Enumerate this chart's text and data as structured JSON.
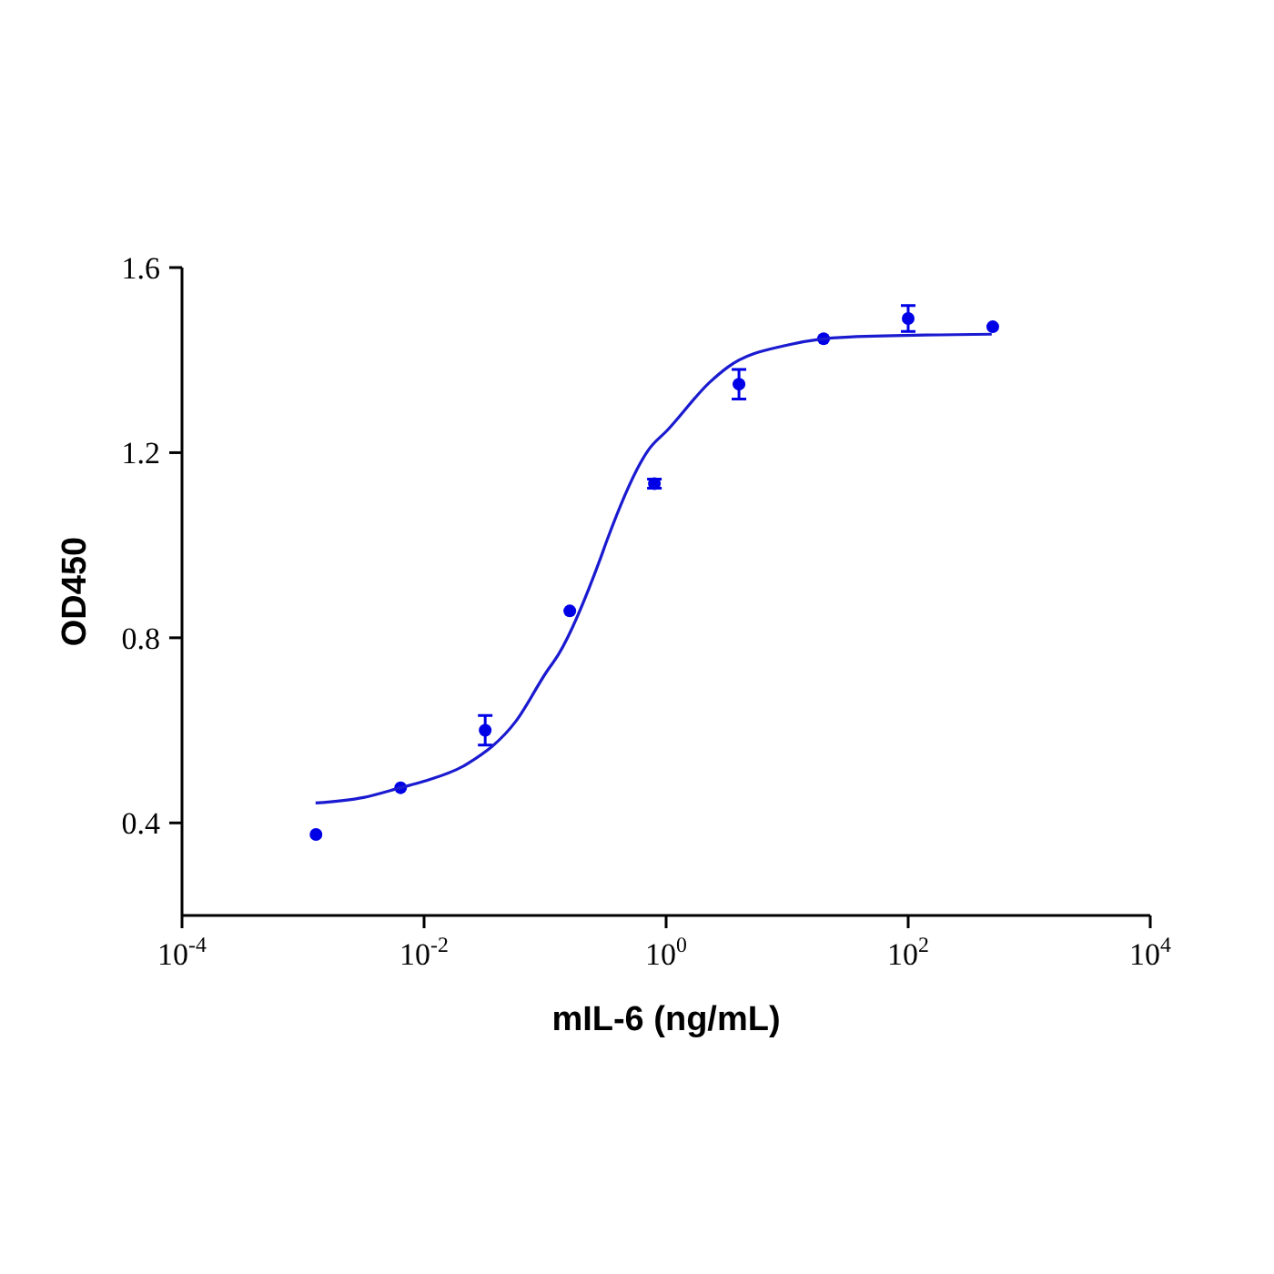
{
  "chart_data": {
    "type": "scatter",
    "xlabel": "mIL-6 (ng/mL)",
    "ylabel": "OD450",
    "log": "x",
    "grid": false,
    "xlim": [
      0.0001,
      10000
    ],
    "ylim": [
      0.2,
      1.6
    ],
    "xticks": [
      {
        "value": 0.0001,
        "label": "10$^{-4}$"
      },
      {
        "value": 0.01,
        "label": "10$^{-2}$"
      },
      {
        "value": 1,
        "label": "10$^{0}$"
      },
      {
        "value": 100,
        "label": "10$^{2}$"
      },
      {
        "value": 10000,
        "label": "10$^{4}$"
      }
    ],
    "yticks": [
      0.4,
      0.8,
      1.2,
      1.6
    ],
    "series": [
      {
        "color": "#0000e6",
        "marker": "circle",
        "x": [
          0.00128,
          0.0064,
          0.032,
          0.16,
          0.8,
          4,
          20,
          100,
          500
        ],
        "values": [
          0.375,
          0.476,
          0.6,
          0.858,
          1.133,
          1.348,
          1.446,
          1.49,
          1.472
        ],
        "errors": [
          null,
          null,
          0.032,
          null,
          0.01,
          0.032,
          null,
          0.028,
          null
        ]
      },
      {
        "type": "line",
        "color": "#1a1ad0",
        "marker": "none",
        "line_style": "solid",
        "x": [
          0.00127,
          0.00316,
          0.00638,
          0.01,
          0.0229,
          0.0575,
          0.102,
          0.129,
          0.288,
          0.324,
          0.724,
          1.02,
          2.29,
          3.24,
          10.2,
          32.4,
          490
        ],
        "values": [
          0.443,
          0.455,
          0.476,
          0.49,
          0.528,
          0.62,
          0.725,
          0.764,
          0.973,
          1.01,
          1.208,
          1.248,
          1.352,
          1.385,
          1.433,
          1.45,
          1.456
        ]
      }
    ]
  }
}
